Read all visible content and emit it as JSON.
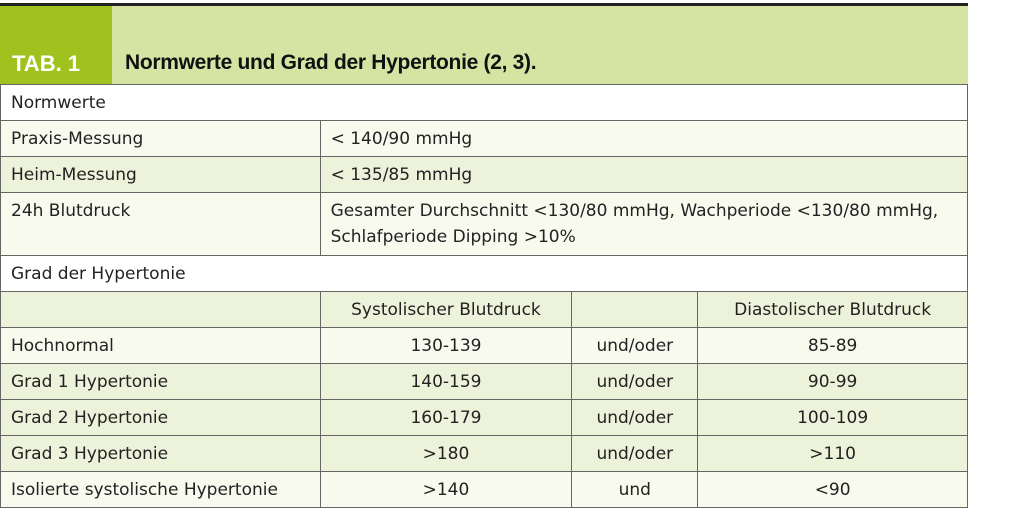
{
  "header": {
    "tab_label": "TAB. 1",
    "title": "Normwerte und Grad der Hypertonie (2, 3)."
  },
  "colors": {
    "accent": "#a0c21e",
    "header_bg": "#d6e4a3",
    "row_green": "#edf2da",
    "row_pale": "#f8faee"
  },
  "normwerte": {
    "section": "Normwerte",
    "rows": [
      {
        "label": "Praxis-Messung",
        "value": "< 140/90 mmHg"
      },
      {
        "label": "Heim-Messung",
        "value": "< 135/85 mmHg"
      },
      {
        "label": "24h Blutdruck",
        "value": "Gesamter Durchschnitt <130/80 mmHg, Wachperiode <130/80 mmHg, Schlafperiode Dipping >10%"
      }
    ]
  },
  "grad": {
    "section": "Grad der Hypertonie",
    "columns": [
      "",
      "Systolischer Blutdruck",
      "",
      "Diastolischer Blutdruck"
    ],
    "rows": [
      {
        "label": "Hochnormal",
        "sys": "130-139",
        "conj": "und/oder",
        "dia": "85-89"
      },
      {
        "label": "Grad 1 Hypertonie",
        "sys": "140-159",
        "conj": "und/oder",
        "dia": "90-99"
      },
      {
        "label": "Grad 2 Hypertonie",
        "sys": "160-179",
        "conj": "und/oder",
        "dia": "100-109"
      },
      {
        "label": "Grad 3 Hypertonie",
        "sys": ">180",
        "conj": "und/oder",
        "dia": ">110"
      },
      {
        "label": "Isolierte systolische Hypertonie",
        "sys": ">140",
        "conj": "und",
        "dia": "<90"
      }
    ]
  }
}
